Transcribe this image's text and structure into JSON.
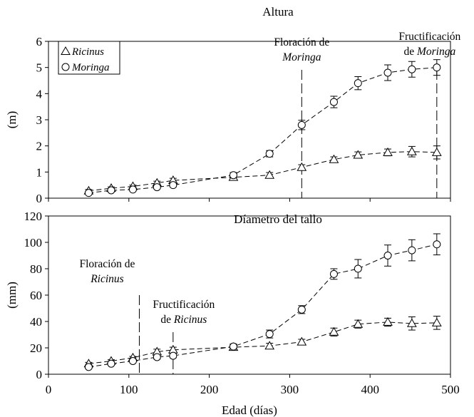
{
  "chart_data": [
    {
      "type": "line",
      "title": "Altura",
      "ylabel": "(m)",
      "xlabel": "",
      "xlim": [
        0,
        500
      ],
      "ylim": [
        0,
        6
      ],
      "yticks": [
        0,
        1,
        2,
        3,
        4,
        5,
        6
      ],
      "grid": false,
      "legend": "top-left",
      "series": [
        {
          "name": "Ricinus",
          "marker": "triangle",
          "x": [
            50,
            78,
            105,
            135,
            155,
            230,
            275,
            315,
            355,
            385,
            422,
            452,
            483
          ],
          "y": [
            0.28,
            0.38,
            0.45,
            0.58,
            0.68,
            0.8,
            0.88,
            1.18,
            1.48,
            1.65,
            1.75,
            1.78,
            1.75
          ],
          "err": [
            0.05,
            0.05,
            0.05,
            0.07,
            0.08,
            0.1,
            0.1,
            0.1,
            0.1,
            0.12,
            0.13,
            0.2,
            0.25
          ]
        },
        {
          "name": "Moringa",
          "marker": "circle",
          "x": [
            50,
            78,
            105,
            135,
            155,
            230,
            275,
            315,
            355,
            385,
            422,
            452,
            483
          ],
          "y": [
            0.2,
            0.3,
            0.33,
            0.42,
            0.5,
            0.88,
            1.7,
            2.8,
            3.68,
            4.4,
            4.8,
            4.93,
            5.0
          ],
          "err": [
            0.05,
            0.05,
            0.05,
            0.06,
            0.07,
            0.1,
            0.12,
            0.18,
            0.22,
            0.25,
            0.3,
            0.3,
            0.3
          ]
        }
      ],
      "annotations": [
        {
          "x": 315,
          "lines": [
            {
              "parts": [
                {
                  "t": "Floración de",
                  "it": false
                }
              ]
            },
            {
              "parts": [
                {
                  "t": "Moringa",
                  "it": true
                }
              ]
            }
          ]
        },
        {
          "x": 483,
          "lines": [
            {
              "parts": [
                {
                  "t": "Fructificación",
                  "it": false
                }
              ]
            },
            {
              "parts": [
                {
                  "t": "de ",
                  "it": false
                },
                {
                  "t": "Moringa",
                  "it": true
                }
              ]
            }
          ]
        }
      ]
    },
    {
      "type": "line",
      "title": "Díametro del tallo",
      "ylabel": "(mm)",
      "xlabel": "Edad (días)",
      "xlim": [
        0,
        500
      ],
      "ylim": [
        0,
        120
      ],
      "xticks": [
        0,
        100,
        200,
        300,
        400,
        500
      ],
      "yticks": [
        0,
        20,
        40,
        60,
        80,
        100,
        120
      ],
      "grid": false,
      "series": [
        {
          "name": "Ricinus",
          "marker": "triangle",
          "x": [
            50,
            78,
            105,
            135,
            155,
            230,
            275,
            315,
            355,
            385,
            422,
            452,
            483
          ],
          "y": [
            8,
            10,
            12.5,
            17,
            18.5,
            20.5,
            21.5,
            24.5,
            32,
            38,
            39.5,
            38.5,
            39
          ],
          "err": [
            1,
            1,
            1,
            2,
            2,
            2,
            2,
            2,
            3,
            3,
            3,
            5,
            5
          ]
        },
        {
          "name": "Moringa",
          "marker": "circle",
          "x": [
            50,
            78,
            105,
            135,
            155,
            230,
            275,
            315,
            355,
            385,
            422,
            452,
            483
          ],
          "y": [
            5.5,
            8,
            10,
            13,
            14,
            21,
            30.5,
            49,
            76,
            80,
            90,
            94,
            98.5
          ],
          "err": [
            1,
            1,
            1,
            1.5,
            1.5,
            2,
            3,
            3,
            4,
            7,
            8,
            8,
            8
          ]
        }
      ],
      "annotations": [
        {
          "x": 113,
          "lines": [
            {
              "parts": [
                {
                  "t": "Floración de",
                  "it": false
                }
              ]
            },
            {
              "parts": [
                {
                  "t": "Ricinus",
                  "it": true
                }
              ]
            }
          ]
        },
        {
          "x": 155,
          "lines": [
            {
              "parts": [
                {
                  "t": "Fructificación",
                  "it": false
                }
              ]
            },
            {
              "parts": [
                {
                  "t": "de ",
                  "it": false
                },
                {
                  "t": "Ricinus",
                  "it": true
                }
              ]
            }
          ]
        }
      ]
    }
  ]
}
